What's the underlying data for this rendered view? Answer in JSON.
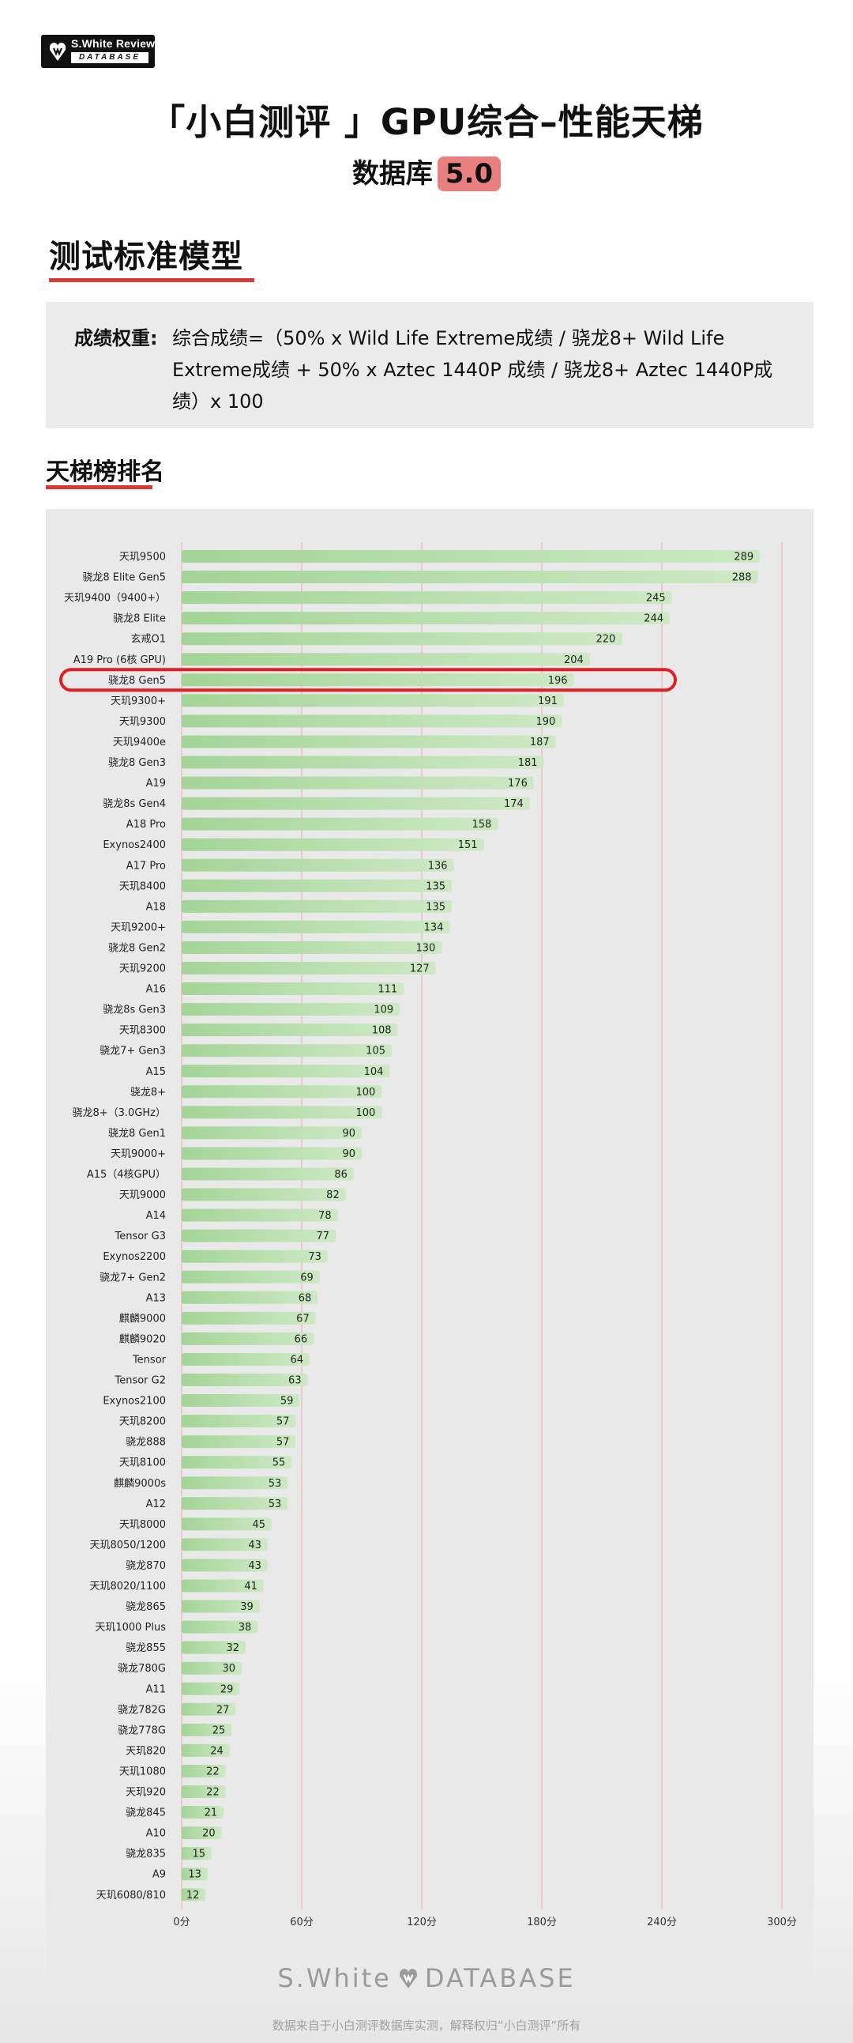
{
  "brand": {
    "logo_name": "S.White Review",
    "logo_sub": "DATABASE"
  },
  "header": {
    "title": "「小白测评 」GPU综合–性能天梯",
    "subtitle": "数据库",
    "version": "5.0"
  },
  "test_model": {
    "heading": "测试标准模型",
    "weight_label": "成绩权重:",
    "weight_formula": "综合成绩=（50% x Wild Life Extreme成绩 / 骁龙8+ Wild Life Extreme成绩 + 50% x Aztec 1440P 成绩 / 骁龙8+ Aztec 1440P成绩）x 100"
  },
  "ranking": {
    "heading": "天梯榜排名"
  },
  "footer": {
    "brand_left": "S.White",
    "brand_right": "DATABASE",
    "note": "数据来自于小白测评数据库实测，解释权归“小白测评”所有"
  },
  "colors": {
    "bar_start": "#a3d497",
    "bar_end": "#cde9c4",
    "gridline": "#e8a8a8",
    "highlight": "#e02020",
    "accent_red": "#d93636"
  },
  "chart_data": {
    "type": "bar",
    "orientation": "horizontal",
    "title": "天梯榜排名",
    "xlabel": "",
    "ylabel": "",
    "xlim": [
      0,
      300
    ],
    "x_ticks": [
      0,
      60,
      120,
      180,
      240,
      300
    ],
    "tick_suffix": "分",
    "grid": true,
    "highlighted_category": "骁龙8 Gen5",
    "categories": [
      "天玑9500",
      "骁龙8 Elite Gen5",
      "天玑9400（9400+）",
      "骁龙8 Elite",
      "玄戒O1",
      "A19 Pro (6核 GPU)",
      "骁龙8 Gen5",
      "天玑9300+",
      "天玑9300",
      "天玑9400e",
      "骁龙8 Gen3",
      "A19",
      "骁龙8s Gen4",
      "A18 Pro",
      "Exynos2400",
      "A17 Pro",
      "天玑8400",
      "A18",
      "天玑9200+",
      "骁龙8 Gen2",
      "天玑9200",
      "A16",
      "骁龙8s Gen3",
      "天玑8300",
      "骁龙7+ Gen3",
      "A15",
      "骁龙8+",
      "骁龙8+（3.0GHz）",
      "骁龙8 Gen1",
      "天玑9000+",
      "A15（4核GPU）",
      "天玑9000",
      "A14",
      "Tensor G3",
      "Exynos2200",
      "骁龙7+ Gen2",
      "A13",
      "麒麟9000",
      "麒麟9020",
      "Tensor",
      "Tensor G2",
      "Exynos2100",
      "天玑8200",
      "骁龙888",
      "天玑8100",
      "麒麟9000s",
      "A12",
      "天玑8000",
      "天玑8050/1200",
      "骁龙870",
      "天玑8020/1100",
      "骁龙865",
      "天玑1000 Plus",
      "骁龙855",
      "骁龙780G",
      "A11",
      "骁龙782G",
      "骁龙778G",
      "天玑820",
      "天玑1080",
      "天玑920",
      "骁龙845",
      "A10",
      "骁龙835",
      "A9",
      "天玑6080/810"
    ],
    "values": [
      289,
      288,
      245,
      244,
      220,
      204,
      196,
      191,
      190,
      187,
      181,
      176,
      174,
      158,
      151,
      136,
      135,
      135,
      134,
      130,
      127,
      111,
      109,
      108,
      105,
      104,
      100,
      100,
      90,
      90,
      86,
      82,
      78,
      77,
      73,
      69,
      68,
      67,
      66,
      64,
      63,
      59,
      57,
      57,
      55,
      53,
      53,
      45,
      43,
      43,
      41,
      39,
      38,
      32,
      30,
      29,
      27,
      25,
      24,
      22,
      22,
      21,
      20,
      15,
      13,
      12
    ]
  }
}
